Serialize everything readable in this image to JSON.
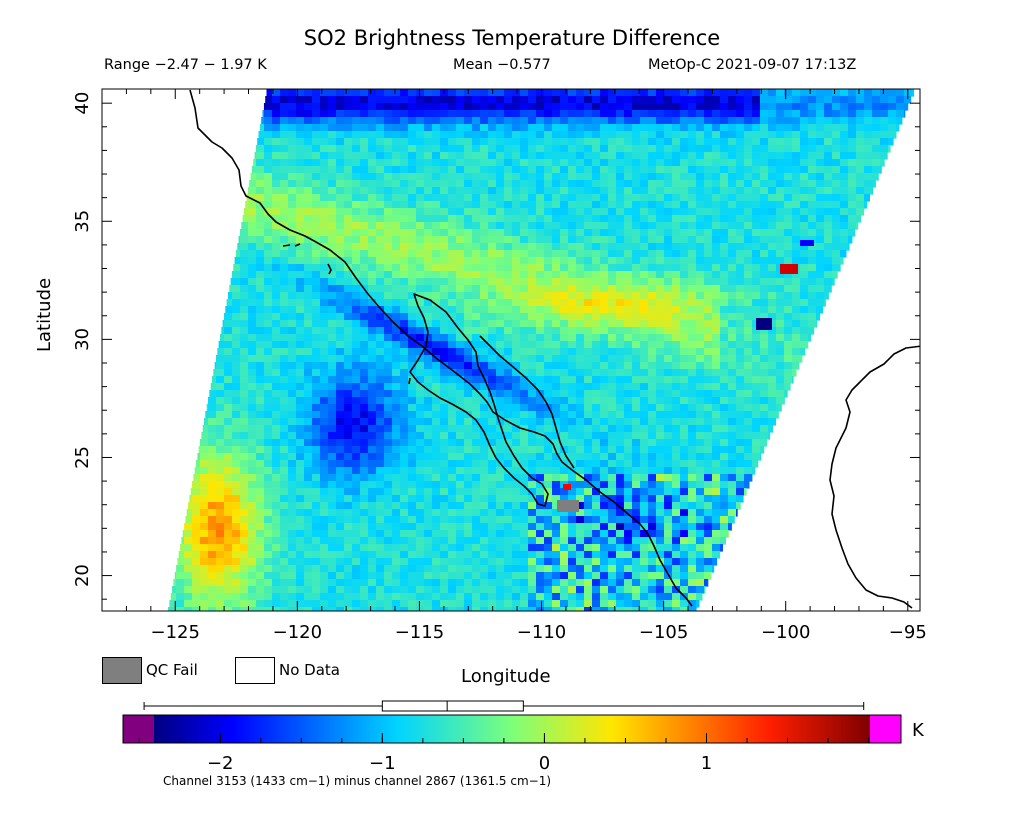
{
  "header": {
    "title": "SO2 Brightness Temperature Difference",
    "range": "Range −2.47 − 1.97 K",
    "mean": "Mean −0.577",
    "satellite": "MetOp-C 2021-09-07 17:13Z"
  },
  "map": {
    "xlabel": "Longitude",
    "ylabel": "Latitude",
    "lon_range": [
      -128,
      -94.5
    ],
    "lat_range": [
      18.5,
      40.6
    ],
    "x_ticks": [
      -125,
      -120,
      -115,
      -110,
      -105,
      -100,
      -95
    ],
    "x_tick_labels": [
      "−125",
      "−120",
      "−115",
      "−110",
      "−105",
      "−100",
      "−95"
    ],
    "y_ticks": [
      20,
      25,
      30,
      35,
      40
    ],
    "y_tick_labels": [
      "20",
      "25",
      "30",
      "35",
      "40"
    ]
  },
  "legend": {
    "qc_fail": "QC Fail",
    "no_data": "No Data",
    "qc_fail_color": "#7f7f7f",
    "no_data_color": "#ffffff"
  },
  "colorbar": {
    "unit": "K",
    "range": [
      -2.6,
      2.2
    ],
    "ticks": [
      -2,
      -1,
      0,
      1
    ],
    "tick_labels": [
      "−2",
      "−1",
      "0",
      "1"
    ],
    "under_color": "#800080",
    "over_color": "#ff00ff",
    "boxplot": {
      "min": -2.47,
      "q1": -1.0,
      "median": -0.6,
      "q3": -0.13,
      "max": 1.97
    },
    "caption": "Channel 3153 (1433 cm−1) minus channel 2867 (1361.5 cm−1)"
  }
}
